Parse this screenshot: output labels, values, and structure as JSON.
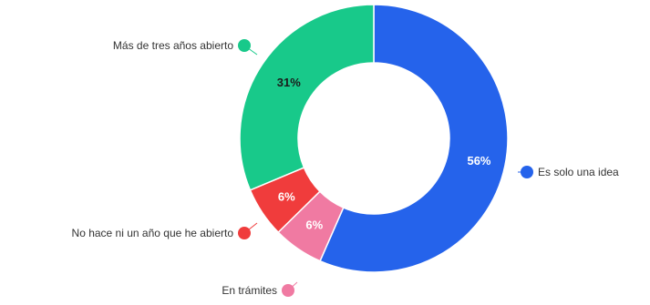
{
  "chart_data": {
    "type": "pie",
    "donut": true,
    "slices": [
      {
        "label": "Es solo una idea",
        "value": 56,
        "display": "56%",
        "color": "#2563eb",
        "label_dark": false
      },
      {
        "label": "En trámites",
        "value": 6,
        "display": "6%",
        "color": "#f07aa2",
        "label_dark": false
      },
      {
        "label": "No hace ni un año que he abierto",
        "value": 6,
        "display": "6%",
        "color": "#f03c3c",
        "label_dark": false
      },
      {
        "label": "Más de tres años abierto",
        "value": 31,
        "display": "31%",
        "color": "#18c98a",
        "label_dark": true
      }
    ],
    "start_angle_deg": 0,
    "direction": "clockwise"
  }
}
